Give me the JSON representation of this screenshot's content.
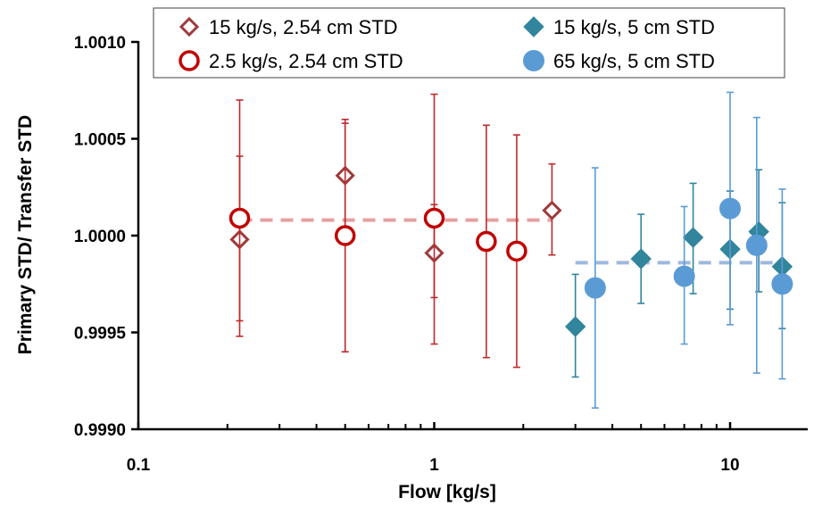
{
  "chart_data": {
    "type": "scatter",
    "title": "",
    "xlabel": "Flow   [kg/s]",
    "ylabel": "Primary STD/ Transfer STD",
    "x_scale": "log",
    "xlim": [
      0.1,
      17.5
    ],
    "ylim": [
      0.999,
      1.0011
    ],
    "x_ticks": [
      0.1,
      1,
      10
    ],
    "x_tick_labels": [
      "0.1",
      "1",
      "10"
    ],
    "y_ticks": [
      0.999,
      0.9995,
      1.0,
      1.0005,
      1.001
    ],
    "y_tick_labels": [
      "0.9990",
      "0.9995",
      "1.0000",
      "1.0005",
      "1.0010"
    ],
    "grid": false,
    "legend_position": "top",
    "series": [
      {
        "name": "15 kg/s, 2.54 cm STD",
        "marker": "diamond-open",
        "color": "#9E3B3B",
        "error_color": "#C0282D",
        "points": [
          {
            "x": 0.22,
            "y": 0.99998,
            "err_low": 0.99956,
            "err_high": 1.00041
          },
          {
            "x": 0.5,
            "y": 1.00031,
            "err_low": 1.0,
            "err_high": 1.00058
          },
          {
            "x": 1.0,
            "y": 0.99991,
            "err_low": 0.99968,
            "err_high": 1.00016
          },
          {
            "x": 2.5,
            "y": 1.00013,
            "err_low": 0.9999,
            "err_high": 1.00037
          }
        ]
      },
      {
        "name": "2.5 kg/s, 2.54 cm STD",
        "marker": "circle-open",
        "color": "#C00000",
        "error_color": "#C0282D",
        "points": [
          {
            "x": 0.22,
            "y": 1.00009,
            "err_low": 0.99948,
            "err_high": 1.0007
          },
          {
            "x": 0.5,
            "y": 1.0,
            "err_low": 0.9994,
            "err_high": 1.0006
          },
          {
            "x": 1.0,
            "y": 1.00009,
            "err_low": 0.99944,
            "err_high": 1.00073
          },
          {
            "x": 1.5,
            "y": 0.99997,
            "err_low": 0.99937,
            "err_high": 1.00057
          },
          {
            "x": 1.9,
            "y": 0.99992,
            "err_low": 0.99932,
            "err_high": 1.00052
          }
        ]
      },
      {
        "name": "15 kg/s, 5 cm STD",
        "marker": "diamond-filled",
        "color": "#31859C",
        "error_color": "#31859C",
        "points": [
          {
            "x": 3.0,
            "y": 0.99953,
            "err_low": 0.99927,
            "err_high": 0.9998
          },
          {
            "x": 5.0,
            "y": 0.99988,
            "err_low": 0.99965,
            "err_high": 1.00011
          },
          {
            "x": 7.5,
            "y": 0.99999,
            "err_low": 0.9997,
            "err_high": 1.00027
          },
          {
            "x": 10.0,
            "y": 0.99993,
            "err_low": 0.99962,
            "err_high": 1.00023
          },
          {
            "x": 12.5,
            "y": 1.00002,
            "err_low": 0.99971,
            "err_high": 1.00034
          },
          {
            "x": 15.0,
            "y": 0.99984,
            "err_low": 0.99952,
            "err_high": 1.00017
          }
        ]
      },
      {
        "name": "65 kg/s, 5 cm STD",
        "marker": "circle-filled",
        "color": "#5B9BD5",
        "error_color": "#5B9BD5",
        "points": [
          {
            "x": 3.5,
            "y": 0.99973,
            "err_low": 0.99911,
            "err_high": 1.00035
          },
          {
            "x": 7.0,
            "y": 0.99979,
            "err_low": 0.99944,
            "err_high": 1.00015
          },
          {
            "x": 10.0,
            "y": 1.00014,
            "err_low": 0.99954,
            "err_high": 1.00074
          },
          {
            "x": 12.3,
            "y": 0.99995,
            "err_low": 0.99929,
            "err_high": 1.00061
          },
          {
            "x": 15.0,
            "y": 0.99975,
            "err_low": 0.99926,
            "err_high": 1.00024
          }
        ]
      }
    ],
    "reference_lines": [
      {
        "x_start": 0.22,
        "x_end": 2.5,
        "y": 1.00008,
        "color": "#E6A0A0",
        "style": "dashed"
      },
      {
        "x_start": 3.0,
        "x_end": 15.0,
        "y": 0.99986,
        "color": "#9DB9DF",
        "style": "dashed"
      }
    ]
  }
}
